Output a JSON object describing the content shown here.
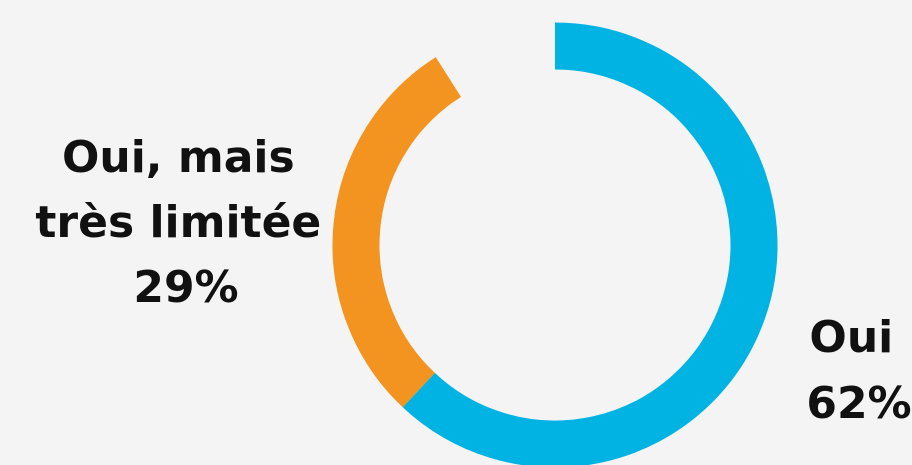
{
  "chart_data": {
    "type": "pie",
    "style": "donut",
    "title": "",
    "slices": [
      {
        "label": "Oui",
        "value": 62,
        "value_label": "62%",
        "color": "#00b3e3"
      },
      {
        "label": "Oui, mais très limitée",
        "label_lines": [
          "Oui, mais",
          "très limitée"
        ],
        "value": 29,
        "value_label": "29%",
        "color": "#f39320"
      }
    ],
    "remainder_percent": 9,
    "legend": "none",
    "labels_placement": "outside"
  }
}
